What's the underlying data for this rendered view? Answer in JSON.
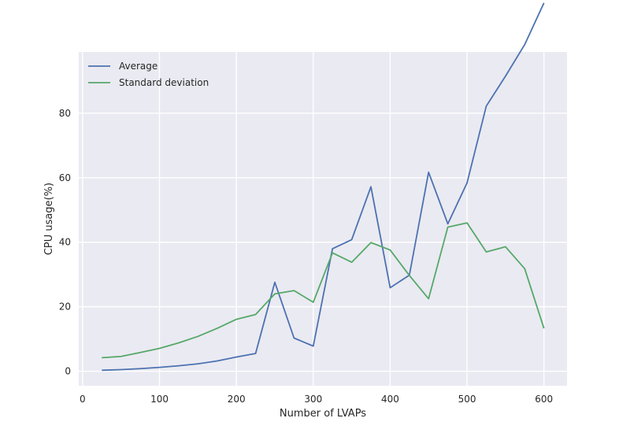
{
  "chart_data": {
    "type": "line",
    "xlabel": "Number of LVAPs",
    "ylabel": "CPU usage(%)",
    "xlim": [
      -5,
      630
    ],
    "ylim": [
      -4.5,
      99
    ],
    "xticks": [
      0,
      100,
      200,
      300,
      400,
      500,
      600
    ],
    "yticks": [
      0,
      20,
      40,
      60,
      80
    ],
    "grid": true,
    "legend_position": "top-left",
    "x": [
      25,
      50,
      75,
      100,
      125,
      150,
      175,
      200,
      225,
      250,
      275,
      300,
      325,
      350,
      375,
      400,
      425,
      450,
      475,
      500,
      525,
      550,
      575,
      600
    ],
    "series": [
      {
        "name": "Average",
        "color": "#4c72b0",
        "values": [
          0.3,
          0.5,
          0.8,
          1.2,
          1.7,
          2.3,
          3.2,
          4.4,
          5.5,
          27.6,
          10.3,
          7.8,
          38.0,
          40.8,
          57.2,
          25.9,
          29.8,
          61.7,
          45.7,
          58.4,
          82.2,
          91.5,
          101.3,
          114.2
        ]
      },
      {
        "name": "Standard deviation",
        "color": "#55a868",
        "values": [
          4.2,
          4.6,
          5.8,
          7.1,
          8.8,
          10.8,
          13.3,
          16.1,
          17.6,
          24.0,
          25.0,
          21.4,
          36.7,
          33.8,
          39.9,
          37.6,
          29.7,
          22.5,
          44.7,
          46.0,
          37.0,
          38.6,
          31.8,
          13.3
        ]
      }
    ]
  }
}
